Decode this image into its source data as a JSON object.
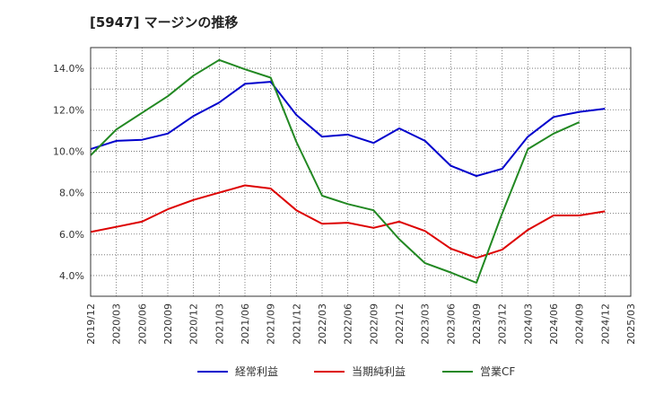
{
  "chart_data": {
    "type": "line",
    "title": "[5947]  マージンの推移",
    "x": [
      "2019/12",
      "2020/03",
      "2020/06",
      "2020/09",
      "2020/12",
      "2021/03",
      "2021/06",
      "2021/09",
      "2021/12",
      "2022/03",
      "2022/06",
      "2022/09",
      "2022/12",
      "2023/03",
      "2023/06",
      "2023/09",
      "2023/12",
      "2024/03",
      "2024/06",
      "2024/09",
      "2024/12",
      "2025/03"
    ],
    "ytick_labels": [
      "4.0%",
      "6.0%",
      "8.0%",
      "10.0%",
      "12.0%",
      "14.0%"
    ],
    "ylim": [
      3.0,
      15.0
    ],
    "grid": true,
    "legend_position": "bottom",
    "series": [
      {
        "name": "経常利益",
        "color": "#0000cc",
        "values": [
          10.1,
          10.5,
          10.55,
          10.85,
          11.7,
          12.35,
          13.25,
          13.35,
          11.75,
          10.7,
          10.8,
          10.4,
          11.1,
          10.5,
          9.3,
          8.8,
          9.15,
          10.7,
          11.65,
          11.9,
          12.05,
          null
        ]
      },
      {
        "name": "当期純利益",
        "color": "#dd0000",
        "values": [
          6.1,
          6.35,
          6.6,
          7.2,
          7.65,
          8.0,
          8.35,
          8.2,
          7.15,
          6.5,
          6.55,
          6.3,
          6.6,
          6.15,
          5.3,
          4.85,
          5.25,
          6.2,
          6.9,
          6.9,
          7.1,
          null
        ]
      },
      {
        "name": "営業CF",
        "color": "#228822",
        "values": [
          9.8,
          11.05,
          11.85,
          12.65,
          13.65,
          14.4,
          13.95,
          13.55,
          10.45,
          7.85,
          7.45,
          7.15,
          5.75,
          4.6,
          4.15,
          3.65,
          7.0,
          10.1,
          10.85,
          11.4,
          null,
          null
        ]
      }
    ]
  }
}
